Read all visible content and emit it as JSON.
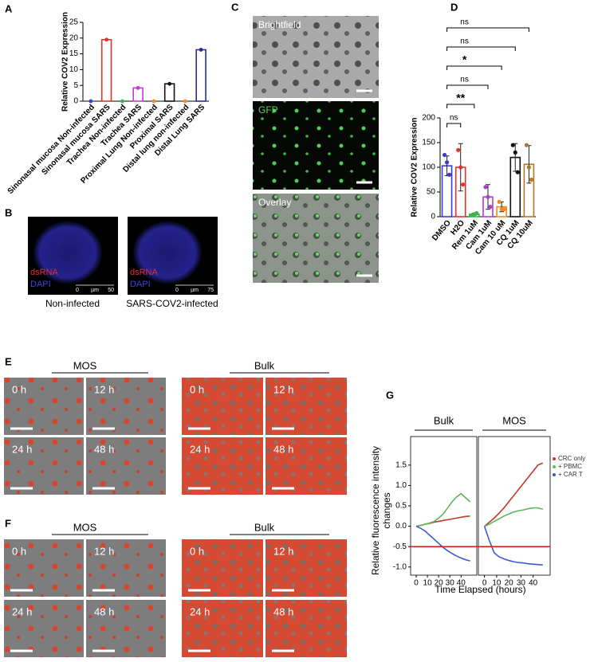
{
  "panel_labels": [
    "A",
    "B",
    "C",
    "D",
    "E",
    "F",
    "G"
  ],
  "chart_data": [
    {
      "type": "bar",
      "ylabel": "Relative COV2 Expression",
      "categories": [
        "Sinonasal mucosa Non-infected",
        "Sinonasal mucosa SARS",
        "Trachea Non-infected",
        "Trachea SARS",
        "Proximal Lung Non-infected",
        "Proximal SARS",
        "Distal lung non-infected",
        "Distal Lung SARS"
      ],
      "values": [
        0,
        19.5,
        0,
        4.2,
        0,
        5.5,
        0,
        16.3
      ],
      "colors": [
        "#3b3bd6",
        "#e0352b",
        "#3cb44b",
        "#c43bd6",
        "#f08a24",
        "#111111",
        "#f08a24",
        "#2a2a9a"
      ],
      "ylim": [
        0,
        25
      ],
      "yticks": [
        0,
        5,
        10,
        15,
        20,
        25
      ]
    },
    {
      "type": "bar",
      "ylabel": "Relative COV2 Expression",
      "categories": [
        "DMSO",
        "H2O",
        "Rem 1uM",
        "Cam 1uM",
        "Cam 10 uM",
        "CQ 1uM",
        "CQ 10uM"
      ],
      "values": [
        103,
        100,
        5,
        40,
        20,
        120,
        106
      ],
      "errors": [
        20,
        48,
        2,
        25,
        10,
        28,
        38
      ],
      "points": [
        [
          125,
          110,
          85
        ],
        [
          135,
          100,
          65
        ],
        [
          3,
          5,
          7
        ],
        [
          60,
          40,
          20
        ],
        [
          30,
          15,
          15
        ],
        [
          145,
          130,
          90
        ],
        [
          145,
          100,
          75
        ]
      ],
      "colors": [
        "#3b3bd6",
        "#e0352b",
        "#3cb44b",
        "#b43bd6",
        "#f08a24",
        "#111111",
        "#b07a2a"
      ],
      "significance": [
        null,
        "ns",
        "**",
        "ns",
        "*",
        "ns",
        "ns"
      ],
      "ylim": [
        0,
        200
      ],
      "yticks": [
        0,
        50,
        100,
        150,
        200
      ]
    },
    {
      "type": "line",
      "ylabel": "Relative fluorescence intensity changes",
      "xlabel": "Time Elapsed (hours)",
      "x": [
        0,
        4,
        8,
        12,
        16,
        20,
        24,
        28,
        32,
        36,
        40,
        44,
        48
      ],
      "series": [
        {
          "name": "CRC only",
          "color": "#c0392b"
        },
        {
          "name": "+ PBMC",
          "color": "#5cb85c"
        },
        {
          "name": "+ CAR T",
          "color": "#3b5bdb"
        }
      ],
      "facets": [
        {
          "title": "Bulk",
          "series": [
            {
              "values": [
                0,
                0.02,
                0.05,
                0.07,
                0.1,
                0.12,
                0.14,
                0.16,
                0.18,
                0.2,
                0.22,
                0.24,
                0.25
              ]
            },
            {
              "values": [
                0,
                0.02,
                0.05,
                0.08,
                0.12,
                0.2,
                0.3,
                0.45,
                0.6,
                0.72,
                0.8,
                0.7,
                0.6
              ]
            },
            {
              "values": [
                0,
                -0.05,
                -0.12,
                -0.22,
                -0.32,
                -0.42,
                -0.52,
                -0.6,
                -0.67,
                -0.73,
                -0.78,
                -0.82,
                -0.85
              ]
            }
          ]
        },
        {
          "title": "MOS",
          "series": [
            {
              "values": [
                0,
                0.1,
                0.2,
                0.32,
                0.45,
                0.6,
                0.75,
                0.9,
                1.05,
                1.2,
                1.35,
                1.5,
                1.55
              ]
            },
            {
              "values": [
                0,
                0.05,
                0.12,
                0.18,
                0.25,
                0.3,
                0.35,
                0.38,
                0.4,
                0.43,
                0.45,
                0.45,
                0.42
              ]
            },
            {
              "values": [
                0,
                -0.35,
                -0.65,
                -0.75,
                -0.8,
                -0.84,
                -0.87,
                -0.89,
                -0.9,
                -0.92,
                -0.93,
                -0.94,
                -0.95
              ]
            }
          ]
        }
      ],
      "hline": -0.5,
      "hline_color": "#e02020",
      "xlim": [
        -5,
        54
      ],
      "xticks": [
        0,
        10,
        20,
        30,
        40
      ],
      "ylim": [
        -1.2,
        2.2
      ],
      "yticks": [
        {
          "value": -1.0,
          "label": "-1.0"
        },
        -0.5,
        {
          "value": 0,
          "label": "0.0"
        },
        0.5,
        {
          "value": 1.0,
          "label": "1.0"
        },
        1.5
      ]
    }
  ],
  "panel_b": {
    "images": [
      {
        "stains": [
          "dsRNA",
          "DAPI"
        ],
        "scale": [
          "0",
          "µm",
          "50"
        ],
        "caption": "Non-infected"
      },
      {
        "stains": [
          "dsRNA",
          "DAPI"
        ],
        "scale": [
          "0",
          "µm",
          "75"
        ],
        "caption": "SARS-COV2-infected"
      }
    ]
  },
  "panel_c": {
    "images": [
      "Brightfield",
      "GFP",
      "Overlay"
    ]
  },
  "panel_e": {
    "groups": [
      "MOS",
      "Bulk"
    ],
    "times": [
      "0 h",
      "12 h",
      "24 h",
      "48 h"
    ]
  },
  "panel_f": {
    "groups": [
      "MOS",
      "Bulk"
    ],
    "times": [
      "0 h",
      "12 h",
      "24 h",
      "48 h"
    ]
  }
}
